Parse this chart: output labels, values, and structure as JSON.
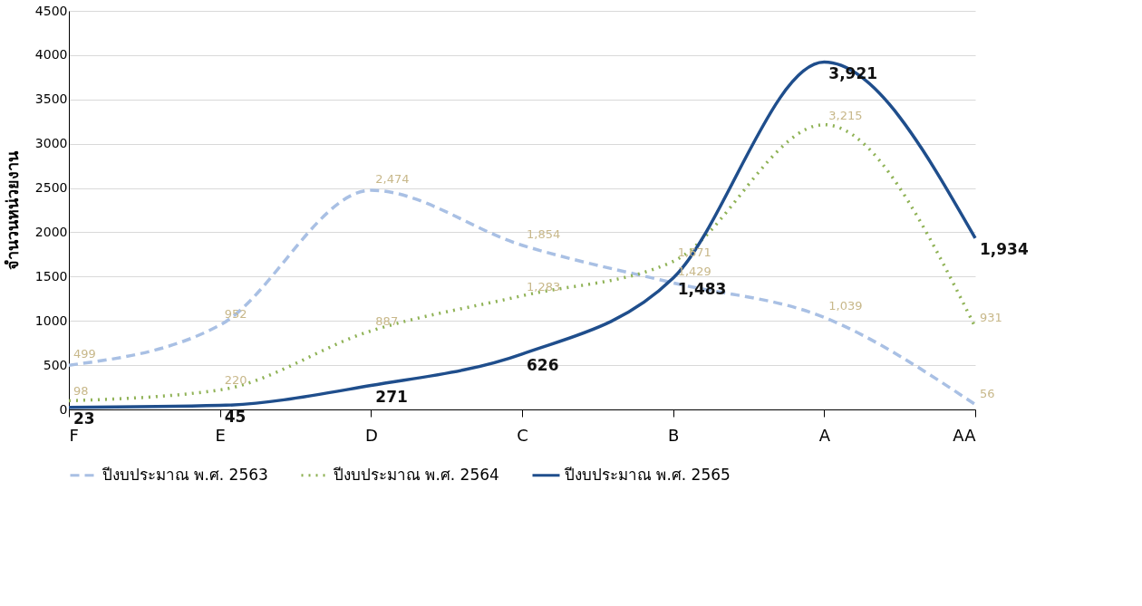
{
  "chart_data": {
    "type": "line",
    "ylabel": "จำนวนหน่วยงาน",
    "categories": [
      "F",
      "E",
      "D",
      "C",
      "B",
      "A",
      "AA"
    ],
    "series": [
      {
        "name": "ปีงบประมาณ พ.ศ. 2563",
        "color": "#a9c0e4",
        "line_style": "dashed",
        "values": [
          499,
          952,
          2474,
          1854,
          1429,
          1039,
          56
        ],
        "value_labels": [
          "499",
          "952",
          "2,474",
          "1,854",
          "1,429",
          "1,039",
          "56"
        ]
      },
      {
        "name": "ปีงบประมาณ พ.ศ. 2564",
        "color": "#8fb255",
        "line_style": "dotted",
        "values": [
          98,
          220,
          887,
          1283,
          1671,
          3215,
          931
        ],
        "value_labels": [
          "98",
          "220",
          "887",
          "1,283",
          "1,671",
          "3,215",
          "931"
        ]
      },
      {
        "name": "ปีงบประมาณ พ.ศ. 2565",
        "color": "#1f4e8c",
        "line_style": "solid",
        "values": [
          23,
          45,
          271,
          626,
          1483,
          3921,
          1934
        ],
        "value_labels": [
          "23",
          "45",
          "271",
          "626",
          "1,483",
          "3,921",
          "1,934"
        ]
      }
    ],
    "ylim": [
      0,
      4500
    ],
    "yticks": [
      0,
      500,
      1000,
      1500,
      2000,
      2500,
      3000,
      3500,
      4000,
      4500
    ],
    "grid": "y",
    "legend": "bottom",
    "marker": "none"
  }
}
